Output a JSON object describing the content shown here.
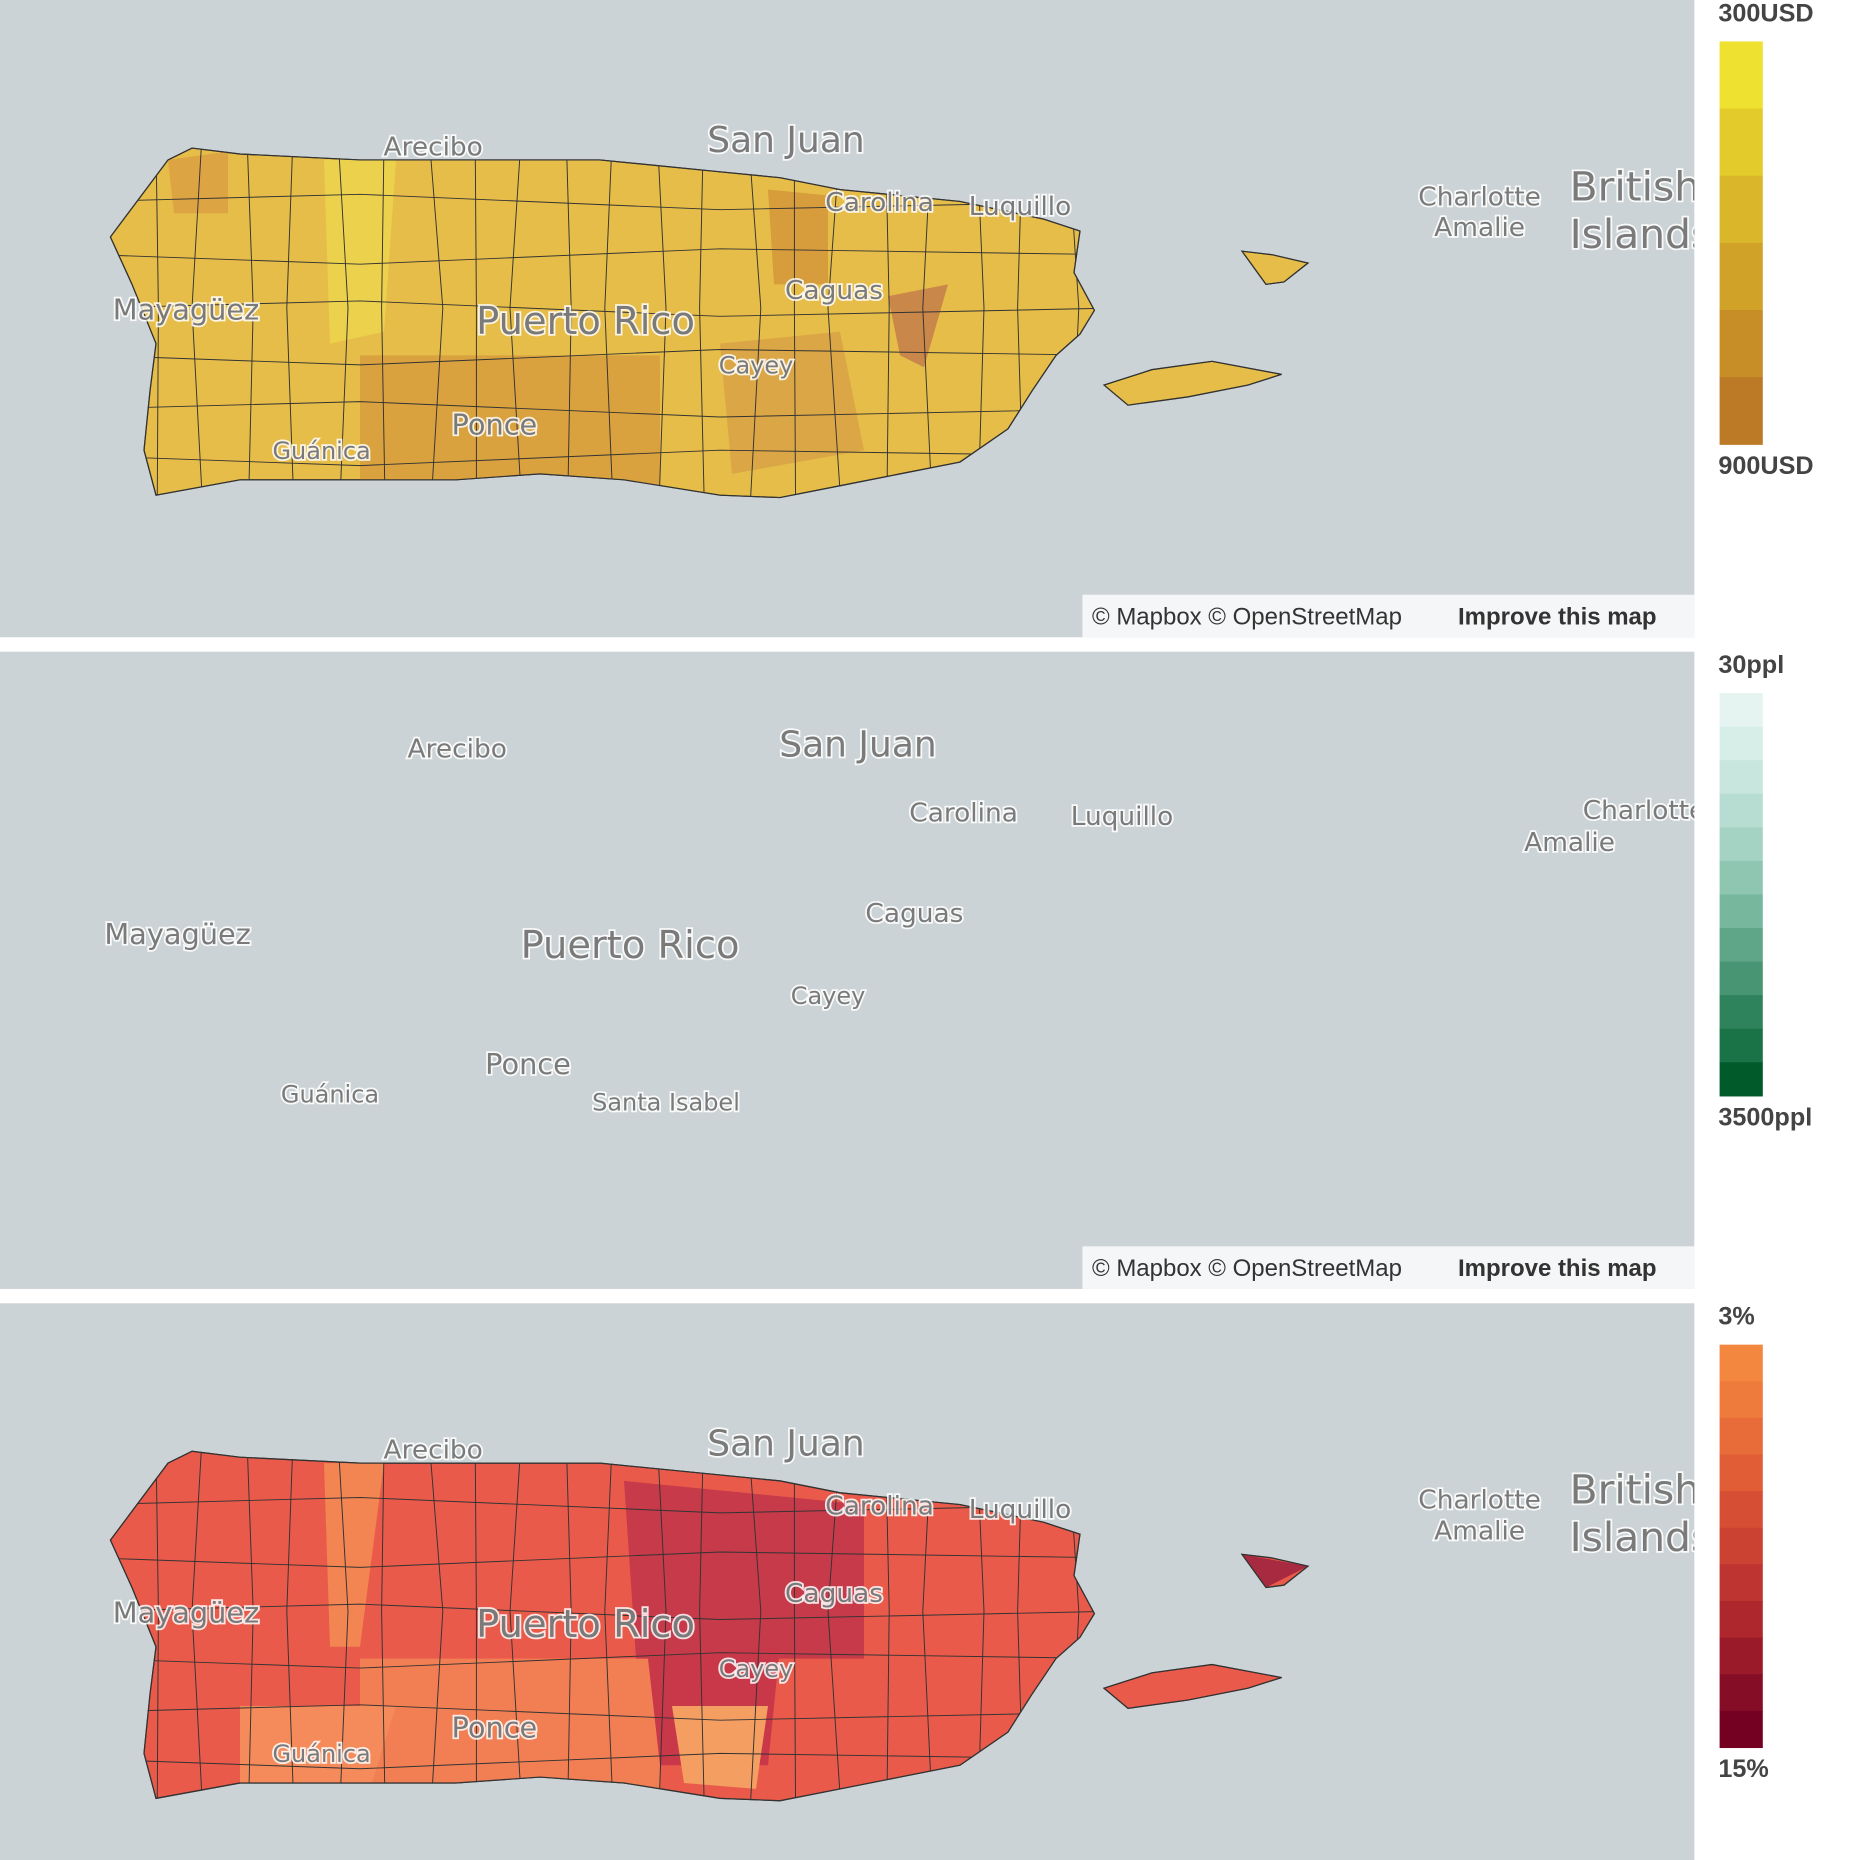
{
  "panels": [
    {
      "base_color": "#e6bd48",
      "patch_color": "#d9a23e",
      "map_labels": [
        "Arecibo",
        "San Juan",
        "Carolina",
        "Luquillo",
        "Mayagüez",
        "Puerto Rico",
        "Caguas",
        "Cayey",
        "Ponce",
        "Guánica",
        "Charlotte",
        "Amalie",
        "British",
        "Islands"
      ],
      "legend": {
        "top_label": "300USD",
        "bottom_label": "900USD",
        "colors": [
          "#eee12f",
          "#e4cb2c",
          "#dab62a",
          "#d0a228",
          "#c78e27",
          "#bd7a26"
        ]
      },
      "attribution": "© Mapbox © OpenStreetMap",
      "improve": "Improve this map"
    },
    {
      "base_color": "#d3ebe6",
      "patch_color": "#9fd2c0",
      "map_labels": [
        "Arecibo",
        "San Juan",
        "Carolina",
        "Luquillo",
        "Mayagüez",
        "Puerto Rico",
        "Caguas",
        "Cayey",
        "Ponce",
        "Guánica",
        "Santa Isabel",
        "Charlotte",
        "Amalie"
      ],
      "legend": {
        "top_label": "30ppl",
        "bottom_label": "3500ppl",
        "colors": [
          "#e5f3f1",
          "#d7ede8",
          "#c8e6de",
          "#b7ddd2",
          "#a4d3c4",
          "#8ec6b2",
          "#76b79e",
          "#5fa688",
          "#479572",
          "#2f835c",
          "#1a7247",
          "#005a2a"
        ]
      },
      "attribution": "© Mapbox © OpenStreetMap",
      "improve": "Improve this map"
    },
    {
      "base_color": "#ea5a4a",
      "patch_color": "#f27e54",
      "map_labels": [
        "Arecibo",
        "San Juan",
        "Carolina",
        "Luquillo",
        "Mayagüez",
        "Puerto Rico",
        "Caguas",
        "Cayey",
        "Ponce",
        "Guánica",
        "Charlotte",
        "Amalie",
        "British",
        "Islands"
      ],
      "legend": {
        "top_label": "3%",
        "bottom_label": "15%",
        "colors": [
          "#f4873f",
          "#ee7a3c",
          "#e86c39",
          "#e05d36",
          "#d64f34",
          "#cb4132",
          "#bd3430",
          "#ad272d",
          "#9b1a2a",
          "#860d26",
          "#740022"
        ]
      }
    }
  ]
}
